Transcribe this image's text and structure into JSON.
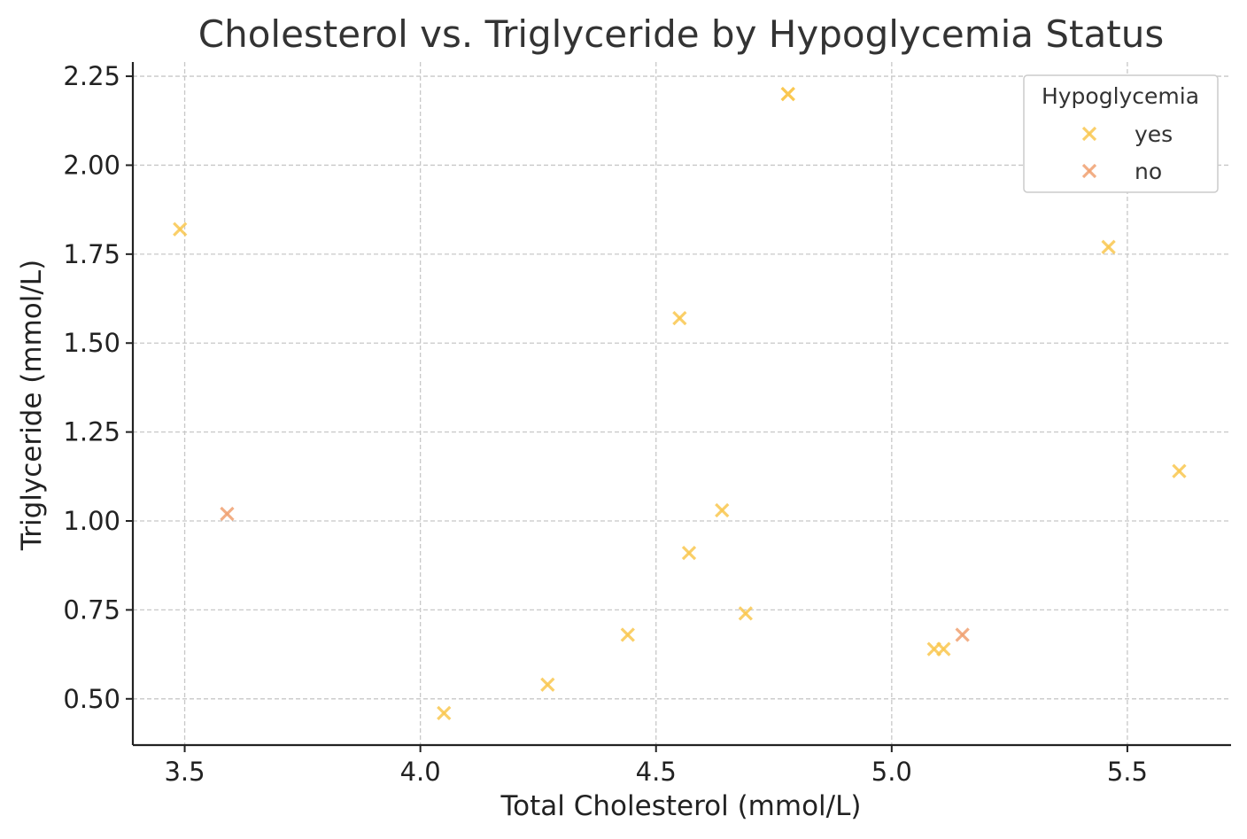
{
  "chart_data": {
    "type": "scatter",
    "title": "Cholesterol vs. Triglyceride by Hypoglycemia Status",
    "xlabel": "Total Cholesterol (mmol/L)",
    "ylabel": "Triglyceride (mmol/L)",
    "xlim": [
      3.39,
      5.72
    ],
    "ylim": [
      0.37,
      2.29
    ],
    "xticks": [
      {
        "value": 3.5,
        "label": "3.5"
      },
      {
        "value": 4.0,
        "label": "4.0"
      },
      {
        "value": 4.5,
        "label": "4.5"
      },
      {
        "value": 5.0,
        "label": "5.0"
      },
      {
        "value": 5.5,
        "label": "5.5"
      }
    ],
    "yticks": [
      {
        "value": 0.5,
        "label": "0.50"
      },
      {
        "value": 0.75,
        "label": "0.75"
      },
      {
        "value": 1.0,
        "label": "1.00"
      },
      {
        "value": 1.25,
        "label": "1.25"
      },
      {
        "value": 1.5,
        "label": "1.50"
      },
      {
        "value": 1.75,
        "label": "1.75"
      },
      {
        "value": 2.0,
        "label": "2.00"
      },
      {
        "value": 2.25,
        "label": "2.25"
      }
    ],
    "grid": true,
    "marker": "x",
    "legend": {
      "title": "Hypoglycemia",
      "placement": "top-right"
    },
    "series": [
      {
        "name": "yes",
        "color": "#f9c74f",
        "points": [
          {
            "x": 3.49,
            "y": 1.82
          },
          {
            "x": 4.05,
            "y": 0.46
          },
          {
            "x": 4.27,
            "y": 0.54
          },
          {
            "x": 4.44,
            "y": 0.68
          },
          {
            "x": 4.55,
            "y": 1.57
          },
          {
            "x": 4.57,
            "y": 0.91
          },
          {
            "x": 4.64,
            "y": 1.03
          },
          {
            "x": 4.69,
            "y": 0.74
          },
          {
            "x": 4.78,
            "y": 2.2
          },
          {
            "x": 4.78,
            "y": 2.2
          },
          {
            "x": 5.09,
            "y": 0.64
          },
          {
            "x": 5.11,
            "y": 0.64
          },
          {
            "x": 5.46,
            "y": 1.77
          },
          {
            "x": 5.61,
            "y": 1.14
          }
        ]
      },
      {
        "name": "no",
        "color": "#f0a070",
        "points": [
          {
            "x": 3.59,
            "y": 1.02
          },
          {
            "x": 5.15,
            "y": 0.68
          }
        ]
      }
    ]
  }
}
